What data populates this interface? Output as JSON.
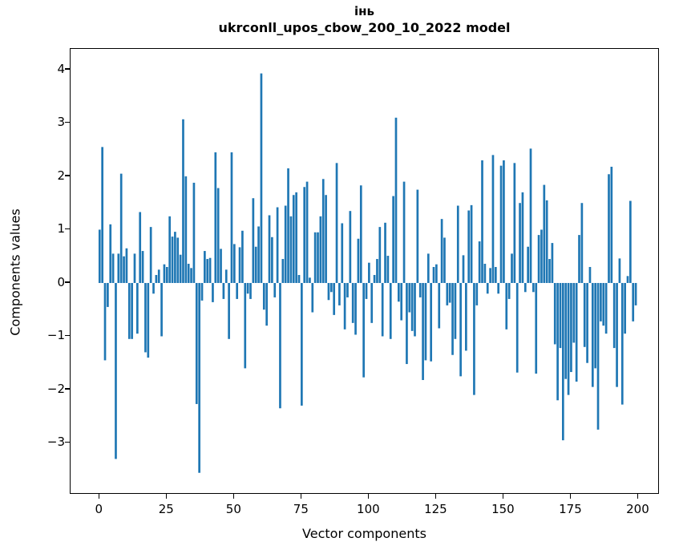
{
  "figure": {
    "title_line1": "інь",
    "title_line2": "ukrconll_upos_cbow_200_10_2022 model"
  },
  "chart_data": {
    "type": "bar",
    "title": "інь",
    "subtitle": "ukrconll_upos_cbow_200_10_2022 model",
    "xlabel": "Vector components",
    "ylabel": "Components values",
    "bar_color": "#1f77b4",
    "grid": false,
    "n_components": 200,
    "xlim": [
      -10.8,
      207.9
    ],
    "ylim": [
      -3.97,
      4.39
    ],
    "xticks": [
      0,
      25,
      50,
      75,
      100,
      125,
      150,
      175,
      200
    ],
    "yticks": [
      -3,
      -2,
      -1,
      0,
      1,
      2,
      3,
      4
    ],
    "bar_width": 0.8,
    "values": [
      1.0,
      2.55,
      -1.45,
      -0.45,
      1.1,
      0.55,
      -3.3,
      0.55,
      2.05,
      0.5,
      0.65,
      -1.05,
      -1.05,
      0.55,
      -0.95,
      1.33,
      0.6,
      -1.3,
      -1.4,
      1.05,
      -0.2,
      0.15,
      0.25,
      -1.0,
      0.35,
      0.3,
      1.25,
      0.87,
      0.96,
      0.85,
      0.53,
      3.07,
      2.0,
      0.36,
      0.28,
      1.88,
      -2.27,
      -3.56,
      -0.33,
      0.6,
      0.45,
      0.47,
      -0.36,
      2.45,
      1.78,
      0.64,
      -0.3,
      0.25,
      -1.05,
      2.45,
      0.73,
      -0.3,
      0.67,
      0.98,
      -1.6,
      -0.2,
      -0.3,
      1.59,
      0.68,
      1.06,
      3.93,
      -0.5,
      -0.8,
      1.27,
      0.86,
      -0.27,
      1.42,
      -2.35,
      0.45,
      1.45,
      2.15,
      1.25,
      1.65,
      1.7,
      0.15,
      -2.3,
      1.8,
      1.9,
      0.1,
      -0.55,
      0.95,
      0.95,
      1.25,
      1.95,
      1.65,
      -0.32,
      -0.17,
      -0.6,
      2.25,
      -0.42,
      1.12,
      -0.87,
      -0.27,
      1.35,
      -0.75,
      -0.97,
      0.83,
      1.83,
      -1.77,
      -0.3,
      0.38,
      -0.75,
      0.15,
      0.45,
      1.05,
      -1.0,
      1.13,
      0.51,
      -1.05,
      1.63,
      3.1,
      -0.35,
      -0.7,
      1.9,
      -1.52,
      -0.55,
      -0.9,
      -1.0,
      1.75,
      -0.27,
      -1.82,
      -1.45,
      0.55,
      -1.47,
      0.3,
      0.35,
      -0.85,
      1.2,
      0.85,
      -0.42,
      -0.37,
      -1.35,
      -1.05,
      1.45,
      -1.75,
      0.52,
      -1.27,
      1.36,
      1.46,
      -2.1,
      -0.42,
      0.78,
      2.3,
      0.36,
      -0.2,
      0.28,
      2.4,
      0.3,
      -0.2,
      2.2,
      2.3,
      -0.87,
      -0.3,
      0.55,
      2.25,
      -1.68,
      1.5,
      1.7,
      -0.17,
      0.68,
      2.52,
      -0.17,
      -1.7,
      0.9,
      1.0,
      1.84,
      1.55,
      0.45,
      0.75,
      -1.15,
      -2.2,
      -1.22,
      -2.95,
      -1.8,
      -2.1,
      -1.67,
      -1.12,
      -1.85,
      0.9,
      1.5,
      -1.2,
      -1.5,
      0.3,
      -1.95,
      -1.6,
      -2.75,
      -0.72,
      -0.8,
      -0.95,
      2.04,
      2.18,
      -1.22,
      -1.95,
      0.46,
      -2.28,
      -0.95,
      0.13,
      1.54,
      -0.72,
      -0.42
    ]
  }
}
